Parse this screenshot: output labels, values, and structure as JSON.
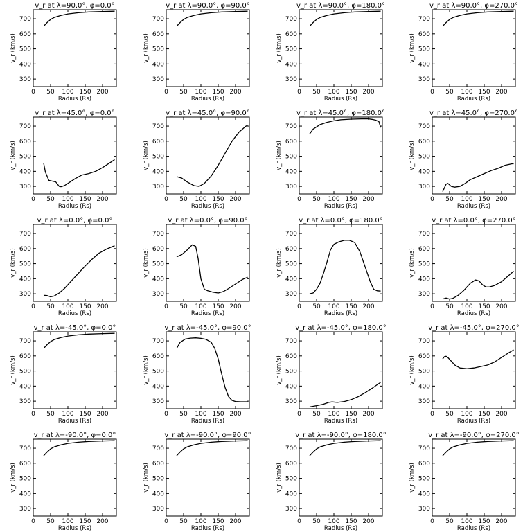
{
  "figure": {
    "xlabel": "Radius (Rs)",
    "ylabel": "v_r (km/s)",
    "xlim": [
      0,
      240
    ],
    "ylim": [
      250,
      760
    ],
    "xticks": [
      0,
      50,
      100,
      150,
      200
    ],
    "yticks": [
      300,
      400,
      500,
      600,
      700
    ]
  },
  "chart_data": [
    {
      "type": "line",
      "title": "v_r at λ=90.0°, φ=0.0°",
      "x": [
        30,
        40,
        50,
        60,
        80,
        100,
        130,
        160,
        200,
        235
      ],
      "values": [
        650,
        675,
        695,
        708,
        722,
        732,
        740,
        745,
        748,
        750
      ]
    },
    {
      "type": "line",
      "title": "v_r at λ=90.0°, φ=90.0°",
      "x": [
        30,
        40,
        50,
        60,
        80,
        100,
        130,
        160,
        200,
        235
      ],
      "values": [
        650,
        675,
        695,
        708,
        722,
        732,
        740,
        745,
        748,
        750
      ]
    },
    {
      "type": "line",
      "title": "v_r at λ=90.0°, φ=180.0°",
      "x": [
        30,
        40,
        50,
        60,
        80,
        100,
        130,
        160,
        200,
        235
      ],
      "values": [
        650,
        675,
        695,
        708,
        722,
        732,
        740,
        745,
        748,
        750
      ]
    },
    {
      "type": "line",
      "title": "v_r at λ=90.0°, φ=270.0°",
      "x": [
        30,
        40,
        50,
        60,
        80,
        100,
        130,
        160,
        200,
        235
      ],
      "values": [
        650,
        675,
        695,
        708,
        722,
        732,
        740,
        745,
        748,
        750
      ]
    },
    {
      "type": "line",
      "title": "v_r at λ=45.0°, φ=0.0°",
      "x": [
        30,
        35,
        45,
        55,
        65,
        75,
        80,
        90,
        100,
        120,
        140,
        160,
        180,
        200,
        220,
        235
      ],
      "values": [
        455,
        395,
        340,
        335,
        330,
        300,
        298,
        305,
        320,
        350,
        375,
        385,
        400,
        425,
        455,
        478
      ]
    },
    {
      "type": "line",
      "title": "v_r at λ=45.0°, φ=90.0°",
      "x": [
        30,
        45,
        60,
        80,
        95,
        110,
        130,
        150,
        170,
        190,
        210,
        230,
        235
      ],
      "values": [
        365,
        355,
        330,
        305,
        300,
        320,
        370,
        440,
        520,
        600,
        660,
        700,
        705
      ]
    },
    {
      "type": "line",
      "title": "v_r at λ=45.0°, φ=180.0°",
      "x": [
        30,
        40,
        60,
        80,
        100,
        120,
        150,
        180,
        200,
        210,
        220,
        230,
        235
      ],
      "values": [
        648,
        680,
        710,
        725,
        735,
        742,
        746,
        748,
        748,
        745,
        740,
        730,
        690
      ]
    },
    {
      "type": "line",
      "title": "v_r at λ=45.0°, φ=270.0°",
      "x": [
        30,
        35,
        40,
        45,
        55,
        65,
        80,
        95,
        110,
        130,
        150,
        170,
        190,
        210,
        230,
        235
      ],
      "values": [
        265,
        290,
        315,
        320,
        300,
        295,
        300,
        320,
        345,
        365,
        385,
        405,
        420,
        440,
        450,
        450
      ]
    },
    {
      "type": "line",
      "title": "v_r at λ=0.0°, φ=0.0°",
      "x": [
        30,
        40,
        50,
        60,
        75,
        90,
        110,
        130,
        150,
        170,
        190,
        210,
        230,
        235
      ],
      "values": [
        290,
        288,
        280,
        285,
        305,
        335,
        385,
        435,
        485,
        530,
        570,
        595,
        615,
        618
      ]
    },
    {
      "type": "line",
      "title": "v_r at λ=0.0°, φ=90.0°",
      "x": [
        30,
        45,
        60,
        75,
        85,
        92,
        100,
        110,
        120,
        135,
        150,
        165,
        180,
        200,
        220,
        235
      ],
      "values": [
        545,
        560,
        590,
        625,
        615,
        535,
        400,
        330,
        320,
        310,
        305,
        315,
        335,
        365,
        395,
        410
      ]
    },
    {
      "type": "line",
      "title": "v_r at λ=0.0°, φ=180.0°",
      "x": [
        30,
        40,
        50,
        60,
        70,
        80,
        90,
        100,
        115,
        130,
        145,
        160,
        175,
        190,
        205,
        215,
        225,
        235
      ],
      "values": [
        300,
        305,
        330,
        370,
        435,
        510,
        590,
        628,
        645,
        655,
        655,
        640,
        580,
        480,
        380,
        330,
        320,
        318
      ]
    },
    {
      "type": "line",
      "title": "v_r at λ=0.0°, φ=270.0°",
      "x": [
        30,
        40,
        50,
        60,
        75,
        90,
        110,
        125,
        135,
        145,
        155,
        165,
        180,
        200,
        220,
        235
      ],
      "values": [
        265,
        272,
        265,
        270,
        290,
        320,
        370,
        392,
        385,
        360,
        345,
        345,
        355,
        380,
        420,
        450
      ]
    },
    {
      "type": "line",
      "title": "v_r at λ=-45.0°, φ=0.0°",
      "x": [
        30,
        40,
        50,
        60,
        80,
        100,
        130,
        160,
        200,
        235
      ],
      "values": [
        650,
        675,
        695,
        708,
        722,
        732,
        740,
        745,
        748,
        750
      ]
    },
    {
      "type": "line",
      "title": "v_r at λ=-45.0°, φ=90.0°",
      "x": [
        30,
        40,
        55,
        70,
        85,
        100,
        115,
        130,
        140,
        150,
        160,
        170,
        180,
        190,
        200,
        215,
        235
      ],
      "values": [
        650,
        690,
        712,
        718,
        720,
        717,
        710,
        690,
        650,
        580,
        480,
        390,
        330,
        305,
        298,
        296,
        296
      ]
    },
    {
      "type": "line",
      "title": "v_r at λ=-45.0°, φ=180.0°",
      "x": [
        30,
        50,
        70,
        85,
        95,
        110,
        130,
        150,
        170,
        190,
        210,
        235
      ],
      "values": [
        262,
        270,
        280,
        292,
        295,
        292,
        298,
        310,
        330,
        355,
        385,
        425
      ]
    },
    {
      "type": "line",
      "title": "v_r at λ=-45.0°, φ=270.0°",
      "x": [
        30,
        35,
        40,
        45,
        55,
        65,
        80,
        100,
        120,
        140,
        160,
        180,
        200,
        220,
        235
      ],
      "values": [
        580,
        595,
        598,
        590,
        565,
        540,
        520,
        515,
        520,
        530,
        540,
        560,
        590,
        620,
        640
      ]
    },
    {
      "type": "line",
      "title": "v_r at λ=-90.0°, φ=0.0°",
      "x": [
        30,
        40,
        50,
        60,
        80,
        100,
        130,
        160,
        200,
        235
      ],
      "values": [
        650,
        675,
        695,
        708,
        722,
        732,
        740,
        745,
        748,
        750
      ]
    },
    {
      "type": "line",
      "title": "v_r at λ=-90.0°, φ=90.0°",
      "x": [
        30,
        40,
        50,
        60,
        80,
        100,
        130,
        160,
        200,
        235
      ],
      "values": [
        650,
        675,
        695,
        708,
        722,
        732,
        740,
        745,
        748,
        750
      ]
    },
    {
      "type": "line",
      "title": "v_r at λ=-90.0°, φ=180.0°",
      "x": [
        30,
        40,
        50,
        60,
        80,
        100,
        130,
        160,
        200,
        235
      ],
      "values": [
        650,
        675,
        695,
        708,
        722,
        732,
        740,
        745,
        748,
        750
      ]
    },
    {
      "type": "line",
      "title": "v_r at λ=-90.0°, φ=270.0°",
      "x": [
        30,
        40,
        50,
        60,
        80,
        100,
        130,
        160,
        200,
        235
      ],
      "values": [
        650,
        675,
        695,
        708,
        722,
        732,
        740,
        745,
        748,
        750
      ]
    }
  ]
}
